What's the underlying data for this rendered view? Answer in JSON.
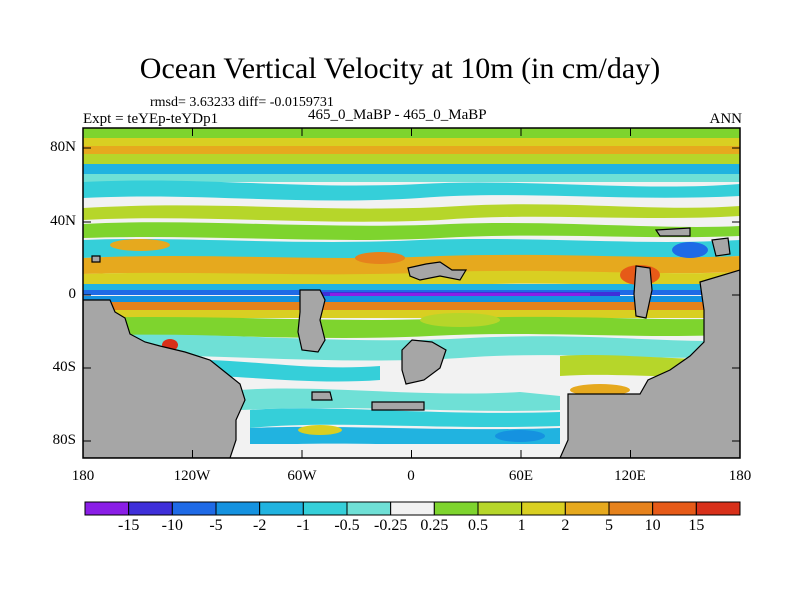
{
  "title": "Ocean Vertical Velocity at 10m (in cm/day)",
  "stats": "rmsd= 3.63233 diff= -0.0159731",
  "left_label": "Expt = teYEp-teYDp1",
  "center_label": "465_0_MaBP - 465_0_MaBP",
  "right_label": "ANN",
  "axes": {
    "x_ticks": [
      "180",
      "120W",
      "60W",
      "0",
      "60E",
      "120E",
      "180"
    ],
    "y_ticks": [
      "80N",
      "40N",
      "0",
      "40S",
      "80S"
    ]
  },
  "colorbar": {
    "labels": [
      "-15",
      "-10",
      "-5",
      "-2",
      "-1",
      "-0.5",
      "-0.25",
      "0.25",
      "0.5",
      "1",
      "2",
      "5",
      "10",
      "15"
    ],
    "colors": [
      "#8a1ee6",
      "#3f2fd9",
      "#1f6ae6",
      "#1592e0",
      "#21b3e0",
      "#35cfd9",
      "#6fe0d6",
      "#f2f2f2",
      "#7ed42e",
      "#b6d62a",
      "#d9cf22",
      "#e6a91e",
      "#e6821c",
      "#e65a18",
      "#d8301a"
    ]
  }
}
